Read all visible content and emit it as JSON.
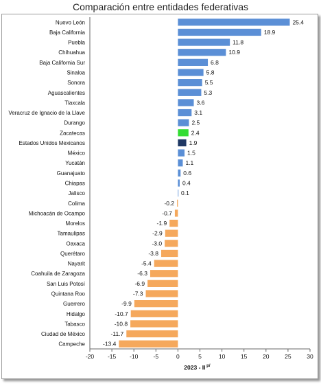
{
  "chart_data": {
    "type": "bar",
    "orientation": "horizontal",
    "title": "Comparación entre entidades federativas",
    "xlabel": "2023 - II",
    "xlabel_superscript": "p/",
    "xlim": [
      -20,
      30
    ],
    "xticks": [
      -20,
      -15,
      -10,
      -5,
      0,
      5,
      10,
      15,
      20,
      25,
      30
    ],
    "grid": false,
    "legend": "none",
    "categories": [
      "Nuevo León",
      "Baja California",
      "Puebla",
      "Chihuahua",
      "Baja California Sur",
      "Sinaloa",
      "Sonora",
      "Aguascalientes",
      "Tlaxcala",
      "Veracruz de Ignacio de la Llave",
      "Durango",
      "Zacatecas",
      "Estados Unidos Mexicanos",
      "México",
      "Yucatán",
      "Guanajuato",
      "Chiapas",
      "Jalisco",
      "Colima",
      "Michoacán de Ocampo",
      "Morelos",
      "Tamaulipas",
      "Oaxaca",
      "Querétaro",
      "Nayarit",
      "Coahuila de Zaragoza",
      "San Luis Potosí",
      "Quintana Roo",
      "Guerrero",
      "Hidalgo",
      "Tabasco",
      "Ciudad de México",
      "Campeche"
    ],
    "values": [
      25.4,
      18.9,
      11.8,
      10.9,
      6.8,
      5.8,
      5.5,
      5.3,
      3.6,
      3.1,
      2.5,
      2.4,
      1.9,
      1.5,
      1.1,
      0.6,
      0.4,
      0.1,
      -0.2,
      -0.7,
      -1.9,
      -2.9,
      -3.0,
      -3.8,
      -5.4,
      -6.3,
      -6.9,
      -7.3,
      -9.9,
      -10.7,
      -10.8,
      -11.7,
      -13.4
    ],
    "value_labels": [
      "25.4",
      "18.9",
      "11.8",
      "10.9",
      "6.8",
      "5.8",
      "5.5",
      "5.3",
      "3.6",
      "3.1",
      "2.5",
      "2.4",
      "1.9",
      "1.5",
      "1.1",
      "0.6",
      "0.4",
      "0.1",
      "-0.2",
      "-0.7",
      "-1.9",
      "-2.9",
      "-3.0",
      "-3.8",
      "-5.4",
      "-6.3",
      "-6.9",
      "-7.3",
      "-9.9",
      "-10.7",
      "-10.8",
      "-11.7",
      "-13.4"
    ],
    "colors": {
      "positive": "#5b8fd6",
      "negative": "#f5a85c",
      "highlight": {
        "Zacatecas": "#33dd33",
        "Estados Unidos Mexicanos": "#1f3864"
      }
    }
  }
}
